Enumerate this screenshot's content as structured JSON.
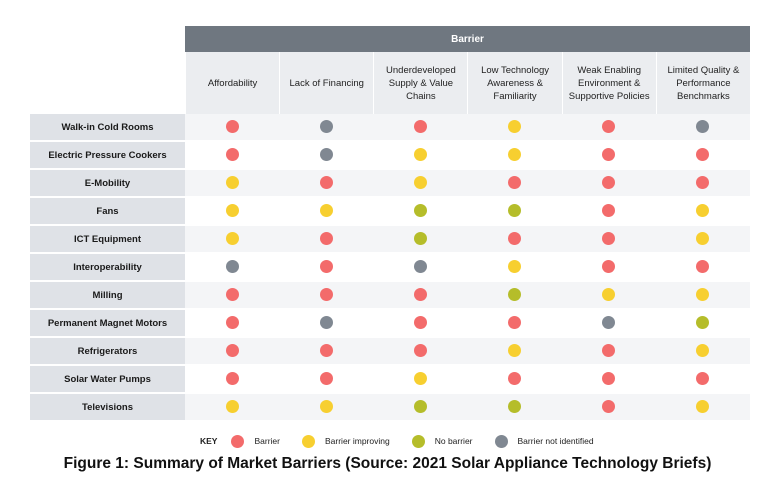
{
  "chart_data": {
    "type": "table",
    "title": "Figure 1: Summary of Market Barriers (Source: 2021 Solar Appliance Technology Briefs)",
    "group_header": "Barrier",
    "columns": [
      "Affordability",
      "Lack of Financing",
      "Underdeveloped Supply & Value Chains",
      "Low Technology Awareness & Familiarity",
      "Weak Enabling Environment & Supportive Policies",
      "Limited Quality & Performance Benchmarks"
    ],
    "rows": [
      {
        "label": "Walk-in Cold Rooms",
        "values": [
          "barrier",
          "barrier_not_identified",
          "barrier",
          "barrier_improving",
          "barrier",
          "barrier_not_identified"
        ]
      },
      {
        "label": "Electric Pressure Cookers",
        "values": [
          "barrier",
          "barrier_not_identified",
          "barrier_improving",
          "barrier_improving",
          "barrier",
          "barrier"
        ]
      },
      {
        "label": "E-Mobility",
        "values": [
          "barrier_improving",
          "barrier",
          "barrier_improving",
          "barrier",
          "barrier",
          "barrier"
        ]
      },
      {
        "label": "Fans",
        "values": [
          "barrier_improving",
          "barrier_improving",
          "no_barrier",
          "no_barrier",
          "barrier",
          "barrier_improving"
        ]
      },
      {
        "label": "ICT Equipment",
        "values": [
          "barrier_improving",
          "barrier",
          "no_barrier",
          "barrier",
          "barrier",
          "barrier_improving"
        ]
      },
      {
        "label": "Interoperability",
        "values": [
          "barrier_not_identified",
          "barrier",
          "barrier_not_identified",
          "barrier_improving",
          "barrier",
          "barrier"
        ]
      },
      {
        "label": "Milling",
        "values": [
          "barrier",
          "barrier",
          "barrier",
          "no_barrier",
          "barrier_improving",
          "barrier_improving"
        ]
      },
      {
        "label": "Permanent Magnet Motors",
        "values": [
          "barrier",
          "barrier_not_identified",
          "barrier",
          "barrier",
          "barrier_not_identified",
          "no_barrier"
        ]
      },
      {
        "label": "Refrigerators",
        "values": [
          "barrier",
          "barrier",
          "barrier",
          "barrier_improving",
          "barrier",
          "barrier_improving"
        ]
      },
      {
        "label": "Solar Water Pumps",
        "values": [
          "barrier",
          "barrier",
          "barrier_improving",
          "barrier",
          "barrier",
          "barrier"
        ]
      },
      {
        "label": "Televisions",
        "values": [
          "barrier_improving",
          "barrier_improving",
          "no_barrier",
          "no_barrier",
          "barrier",
          "barrier_improving"
        ]
      }
    ],
    "legend": {
      "title": "KEY",
      "placement": "bottom",
      "items": [
        {
          "key": "barrier",
          "label": "Barrier",
          "color": "#f36b6b"
        },
        {
          "key": "barrier_improving",
          "label": "Barrier improving",
          "color": "#f7cf30"
        },
        {
          "key": "no_barrier",
          "label": "No barrier",
          "color": "#b5bd2a"
        },
        {
          "key": "barrier_not_identified",
          "label": "Barrier not identified",
          "color": "#808892"
        }
      ]
    },
    "grid": false
  }
}
